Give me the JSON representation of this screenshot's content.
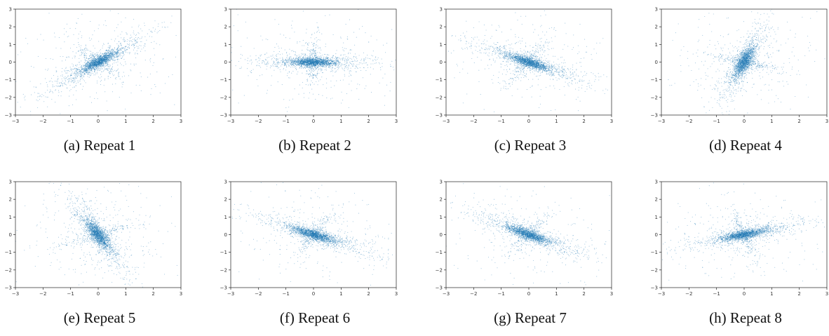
{
  "accent_color": "#1f77b4",
  "chart_data": [
    {
      "type": "scatter",
      "caption": "(a) Repeat 1",
      "xlim": [
        -3,
        3
      ],
      "ylim": [
        -3,
        3
      ],
      "xticks": [
        "−3",
        "−2",
        "−1",
        "0",
        "1",
        "2",
        "3"
      ],
      "yticks": [
        "−3",
        "−2",
        "−1",
        "0",
        "1",
        "2",
        "3"
      ],
      "approx_points": 8000,
      "correlation": "strong positive",
      "principal_slope": 0.9,
      "color": "#1f77b4"
    },
    {
      "type": "scatter",
      "caption": "(b) Repeat 2",
      "xlim": [
        -3,
        3
      ],
      "ylim": [
        -3,
        3
      ],
      "xticks": [
        "−3",
        "−2",
        "−1",
        "0",
        "1",
        "2",
        "3"
      ],
      "yticks": [
        "−3",
        "−2",
        "−1",
        "0",
        "1",
        "2",
        "3"
      ],
      "approx_points": 8000,
      "correlation": "none (star-shaped, horizontal spread)",
      "principal_slope": 0.0,
      "color": "#1f77b4"
    },
    {
      "type": "scatter",
      "caption": "(c) Repeat 3",
      "xlim": [
        -3,
        3
      ],
      "ylim": [
        -3,
        3
      ],
      "xticks": [
        "−3",
        "−2",
        "−1",
        "0",
        "1",
        "2",
        "3"
      ],
      "yticks": [
        "−3",
        "−2",
        "−1",
        "0",
        "1",
        "2",
        "3"
      ],
      "approx_points": 8000,
      "correlation": "negative",
      "principal_slope": -0.55,
      "color": "#1f77b4"
    },
    {
      "type": "scatter",
      "caption": "(d) Repeat 4",
      "xlim": [
        -3,
        3
      ],
      "ylim": [
        -3,
        3
      ],
      "xticks": [
        "−3",
        "−2",
        "−1",
        "0",
        "1",
        "2",
        "3"
      ],
      "yticks": [
        "−3",
        "−2",
        "−1",
        "0",
        "1",
        "2",
        "3"
      ],
      "approx_points": 8000,
      "correlation": "weak positive (vertical elongation)",
      "principal_slope": 3.0,
      "color": "#1f77b4"
    },
    {
      "type": "scatter",
      "caption": "(e) Repeat 5",
      "xlim": [
        -3,
        3
      ],
      "ylim": [
        -3,
        3
      ],
      "xticks": [
        "−3",
        "−2",
        "−1",
        "0",
        "1",
        "2",
        "3"
      ],
      "yticks": [
        "−3",
        "−2",
        "−1",
        "0",
        "1",
        "2",
        "3"
      ],
      "approx_points": 8000,
      "correlation": "negative (steep)",
      "principal_slope": -2.2,
      "color": "#1f77b4"
    },
    {
      "type": "scatter",
      "caption": "(f) Repeat 6",
      "xlim": [
        -3,
        3
      ],
      "ylim": [
        -3,
        3
      ],
      "xticks": [
        "−3",
        "−2",
        "−1",
        "0",
        "1",
        "2",
        "3"
      ],
      "yticks": [
        "−3",
        "−2",
        "−1",
        "0",
        "1",
        "2",
        "3"
      ],
      "approx_points": 8000,
      "correlation": "negative",
      "principal_slope": -0.5,
      "color": "#1f77b4"
    },
    {
      "type": "scatter",
      "caption": "(g) Repeat 7",
      "xlim": [
        -3,
        3
      ],
      "ylim": [
        -3,
        3
      ],
      "xticks": [
        "−3",
        "−2",
        "−1",
        "0",
        "1",
        "2",
        "3"
      ],
      "yticks": [
        "−3",
        "−2",
        "−1",
        "0",
        "1",
        "2",
        "3"
      ],
      "approx_points": 8000,
      "correlation": "negative",
      "principal_slope": -0.6,
      "color": "#1f77b4"
    },
    {
      "type": "scatter",
      "caption": "(h) Repeat 8",
      "xlim": [
        -3,
        3
      ],
      "ylim": [
        -3,
        3
      ],
      "xticks": [
        "−3",
        "−2",
        "−1",
        "0",
        "1",
        "2",
        "3"
      ],
      "yticks": [
        "−3",
        "−2",
        "−1",
        "0",
        "1",
        "2",
        "3"
      ],
      "approx_points": 8000,
      "correlation": "weak positive (star-shaped)",
      "principal_slope": 0.3,
      "color": "#1f77b4"
    }
  ]
}
